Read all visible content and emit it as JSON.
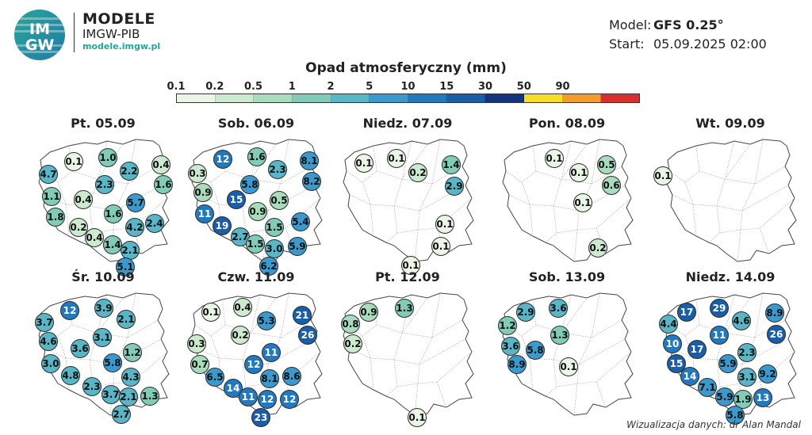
{
  "header": {
    "logo_text_top": "IM",
    "logo_text_bottom": "GW",
    "brand_title": "MODELE",
    "brand_subtitle": "IMGW-PIB",
    "brand_url": "modele.imgw.pl",
    "model_key": "Model:",
    "model_value": "GFS 0.25°",
    "start_key": "Start:",
    "start_value": "05.09.2025 02:00"
  },
  "legend": {
    "title": "Opad atmosferyczny (mm)",
    "ticks": [
      "0.1",
      "0.2",
      "0.5",
      "1",
      "2",
      "5",
      "10",
      "15",
      "30",
      "50",
      "90"
    ],
    "colors": [
      "#eaf5e7",
      "#cde9cf",
      "#a9dcbd",
      "#83cbb9",
      "#5ab6c7",
      "#3c99cd",
      "#2379be",
      "#1b5ea8",
      "#14357d",
      "#f5dd2a",
      "#f39c2e",
      "#d8312d"
    ]
  },
  "panels": [
    {
      "title": "Pt. 05.09",
      "bubbles": [
        {
          "v": "0.1",
          "x": 50,
          "y": 34
        },
        {
          "v": "1.0",
          "x": 93,
          "y": 29
        },
        {
          "v": "0.4",
          "x": 160,
          "y": 38
        },
        {
          "v": "4.7",
          "x": 18,
          "y": 50
        },
        {
          "v": "2.2",
          "x": 120,
          "y": 46
        },
        {
          "v": "1.6",
          "x": 163,
          "y": 63
        },
        {
          "v": "2.3",
          "x": 89,
          "y": 63
        },
        {
          "v": "1.1",
          "x": 22,
          "y": 78
        },
        {
          "v": "0.4",
          "x": 62,
          "y": 82
        },
        {
          "v": "5.7",
          "x": 128,
          "y": 86
        },
        {
          "v": "1.8",
          "x": 27,
          "y": 104
        },
        {
          "v": "1.6",
          "x": 100,
          "y": 100
        },
        {
          "v": "0.2",
          "x": 56,
          "y": 117
        },
        {
          "v": "4.2",
          "x": 127,
          "y": 117
        },
        {
          "v": "2.4",
          "x": 152,
          "y": 112
        },
        {
          "v": "0.4",
          "x": 76,
          "y": 130
        },
        {
          "v": "1.4",
          "x": 99,
          "y": 139
        },
        {
          "v": "2.1",
          "x": 121,
          "y": 146
        },
        {
          "v": "5.1",
          "x": 115,
          "y": 167
        }
      ]
    },
    {
      "title": "Sob. 06.09",
      "bubbles": [
        {
          "v": "12",
          "x": 45,
          "y": 31
        },
        {
          "v": "1.6",
          "x": 88,
          "y": 28
        },
        {
          "v": "8.1",
          "x": 154,
          "y": 33
        },
        {
          "v": "0.3",
          "x": 13,
          "y": 49
        },
        {
          "v": "2.3",
          "x": 114,
          "y": 44
        },
        {
          "v": "8.2",
          "x": 157,
          "y": 59
        },
        {
          "v": "5.8",
          "x": 79,
          "y": 63
        },
        {
          "v": "0.9",
          "x": 20,
          "y": 73
        },
        {
          "v": "15",
          "x": 62,
          "y": 82
        },
        {
          "v": "0.5",
          "x": 116,
          "y": 83
        },
        {
          "v": "0.9",
          "x": 89,
          "y": 97
        },
        {
          "v": "11",
          "x": 22,
          "y": 100
        },
        {
          "v": "1.5",
          "x": 110,
          "y": 117
        },
        {
          "v": "5.4",
          "x": 143,
          "y": 110
        },
        {
          "v": "19",
          "x": 44,
          "y": 115
        },
        {
          "v": "2.7",
          "x": 67,
          "y": 129
        },
        {
          "v": "1.5",
          "x": 86,
          "y": 138
        },
        {
          "v": "3.0",
          "x": 110,
          "y": 144
        },
        {
          "v": "5.9",
          "x": 139,
          "y": 141
        },
        {
          "v": "6.2",
          "x": 103,
          "y": 166
        }
      ]
    },
    {
      "title": "Niedz. 07.09",
      "bubbles": [
        {
          "v": "0.1",
          "x": 32,
          "y": 36
        },
        {
          "v": "0.1",
          "x": 73,
          "y": 30
        },
        {
          "v": "0.2",
          "x": 100,
          "y": 48
        },
        {
          "v": "1.4",
          "x": 142,
          "y": 38
        },
        {
          "v": "2.9",
          "x": 146,
          "y": 65
        },
        {
          "v": "0.1",
          "x": 134,
          "y": 113
        },
        {
          "v": "0.1",
          "x": 129,
          "y": 141
        },
        {
          "v": "0.1",
          "x": 91,
          "y": 165
        }
      ]
    },
    {
      "title": "Pon. 08.09",
      "bubbles": [
        {
          "v": "0.1",
          "x": 71,
          "y": 30
        },
        {
          "v": "0.5",
          "x": 137,
          "y": 38
        },
        {
          "v": "0.1",
          "x": 102,
          "y": 48
        },
        {
          "v": "0.6",
          "x": 143,
          "y": 64
        },
        {
          "v": "0.1",
          "x": 107,
          "y": 86
        },
        {
          "v": "0.2",
          "x": 126,
          "y": 143
        }
      ]
    },
    {
      "title": "Wt. 09.09",
      "bubbles": [
        {
          "v": "0.1",
          "x": 2,
          "y": 52
        }
      ]
    },
    {
      "title": "Śr. 10.09",
      "bubbles": [
        {
          "v": "12",
          "x": 45,
          "y": 28
        },
        {
          "v": "3.9",
          "x": 88,
          "y": 25
        },
        {
          "v": "3.7",
          "x": 13,
          "y": 43
        },
        {
          "v": "2.1",
          "x": 116,
          "y": 39
        },
        {
          "v": "3.1",
          "x": 86,
          "y": 62
        },
        {
          "v": "4.6",
          "x": 18,
          "y": 67
        },
        {
          "v": "3.6",
          "x": 58,
          "y": 76
        },
        {
          "v": "1.2",
          "x": 124,
          "y": 81
        },
        {
          "v": "5.8",
          "x": 99,
          "y": 94
        },
        {
          "v": "3.0",
          "x": 21,
          "y": 95
        },
        {
          "v": "4.8",
          "x": 46,
          "y": 110
        },
        {
          "v": "4.3",
          "x": 122,
          "y": 112
        },
        {
          "v": "2.3",
          "x": 73,
          "y": 124
        },
        {
          "v": "3.7",
          "x": 97,
          "y": 134
        },
        {
          "v": "2.1",
          "x": 119,
          "y": 137
        },
        {
          "v": "1.3",
          "x": 146,
          "y": 136
        },
        {
          "v": "2.7",
          "x": 110,
          "y": 159
        }
      ]
    },
    {
      "title": "Czw. 11.09",
      "bubbles": [
        {
          "v": "0.1",
          "x": 30,
          "y": 30
        },
        {
          "v": "0.4",
          "x": 70,
          "y": 24
        },
        {
          "v": "21",
          "x": 145,
          "y": 34
        },
        {
          "v": "5.3",
          "x": 100,
          "y": 41
        },
        {
          "v": "26",
          "x": 152,
          "y": 59
        },
        {
          "v": "0.2",
          "x": 67,
          "y": 59
        },
        {
          "v": "0.3",
          "x": 12,
          "y": 70
        },
        {
          "v": "11",
          "x": 106,
          "y": 81
        },
        {
          "v": "0.7",
          "x": 16,
          "y": 96
        },
        {
          "v": "12",
          "x": 84,
          "y": 96
        },
        {
          "v": "6.5",
          "x": 35,
          "y": 112
        },
        {
          "v": "8.1",
          "x": 104,
          "y": 114
        },
        {
          "v": "8.6",
          "x": 132,
          "y": 111
        },
        {
          "v": "14",
          "x": 58,
          "y": 126
        },
        {
          "v": "11",
          "x": 77,
          "y": 137
        },
        {
          "v": "12",
          "x": 101,
          "y": 140
        },
        {
          "v": "12",
          "x": 129,
          "y": 140
        },
        {
          "v": "23",
          "x": 93,
          "y": 163
        }
      ]
    },
    {
      "title": "Pt. 12.09",
      "bubbles": [
        {
          "v": "0.9",
          "x": 38,
          "y": 30
        },
        {
          "v": "1.3",
          "x": 83,
          "y": 25
        },
        {
          "v": "0.8",
          "x": 15,
          "y": 45
        },
        {
          "v": "0.2",
          "x": 18,
          "y": 70
        },
        {
          "v": "0.1",
          "x": 99,
          "y": 163
        }
      ]
    },
    {
      "title": "Sob. 13.09",
      "bubbles": [
        {
          "v": "2.9",
          "x": 35,
          "y": 30
        },
        {
          "v": "3.6",
          "x": 76,
          "y": 25
        },
        {
          "v": "1.2",
          "x": 12,
          "y": 47
        },
        {
          "v": "1.3",
          "x": 78,
          "y": 59
        },
        {
          "v": "3.6",
          "x": 16,
          "y": 73
        },
        {
          "v": "5.8",
          "x": 47,
          "y": 78
        },
        {
          "v": "8.9",
          "x": 24,
          "y": 96
        },
        {
          "v": "0.1",
          "x": 89,
          "y": 99
        }
      ]
    },
    {
      "title": "Niedz. 14.09",
      "bubbles": [
        {
          "v": "17",
          "x": 32,
          "y": 30
        },
        {
          "v": "29",
          "x": 73,
          "y": 25
        },
        {
          "v": "8.9",
          "x": 143,
          "y": 31
        },
        {
          "v": "4.4",
          "x": 9,
          "y": 45
        },
        {
          "v": "4.6",
          "x": 101,
          "y": 41
        },
        {
          "v": "26",
          "x": 145,
          "y": 58
        },
        {
          "v": "11",
          "x": 73,
          "y": 59
        },
        {
          "v": "10",
          "x": 14,
          "y": 70
        },
        {
          "v": "17",
          "x": 45,
          "y": 77
        },
        {
          "v": "2.3",
          "x": 108,
          "y": 81
        },
        {
          "v": "15",
          "x": 19,
          "y": 95
        },
        {
          "v": "5.9",
          "x": 84,
          "y": 95
        },
        {
          "v": "14",
          "x": 36,
          "y": 111
        },
        {
          "v": "3.1",
          "x": 108,
          "y": 112
        },
        {
          "v": "9.2",
          "x": 134,
          "y": 108
        },
        {
          "v": "7.1",
          "x": 58,
          "y": 125
        },
        {
          "v": "5.9",
          "x": 80,
          "y": 137
        },
        {
          "v": "1.9",
          "x": 103,
          "y": 140
        },
        {
          "v": "13",
          "x": 128,
          "y": 138
        },
        {
          "v": "5.8",
          "x": 93,
          "y": 160
        }
      ]
    }
  ],
  "credit": "Wizualizacja danych: dr Alan Mandal"
}
